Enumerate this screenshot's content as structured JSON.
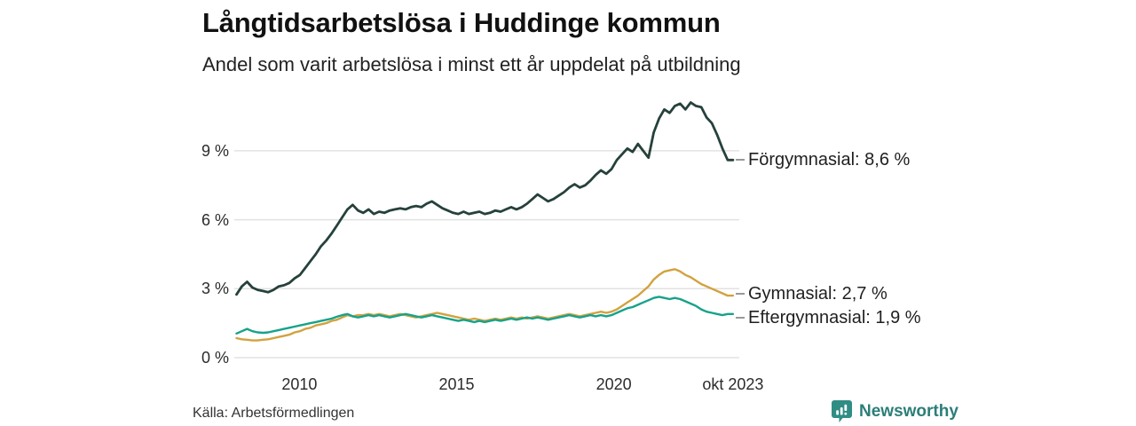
{
  "header": {
    "title": "Långtidsarbetslösa i Huddinge kommun",
    "subtitle": "Andel som varit arbetslösa i minst ett år uppdelat på utbildning"
  },
  "footer": {
    "source": "Källa: Arbetsförmedlingen",
    "brand": "Newsworthy"
  },
  "colors": {
    "grid": "#e2e2e2",
    "connector": "#999999",
    "brand_teal": "#2c7e78",
    "text_dark": "#111111"
  },
  "chart_data": {
    "type": "line",
    "title": "Långtidsarbetslösa i Huddinge kommun",
    "subtitle": "Andel som varit arbetslösa i minst ett år uppdelat på utbildning",
    "grid": "horizontal",
    "legend_position": "labels-at-line-end-right",
    "xlim": [
      2008,
      2023.79
    ],
    "ylim": [
      0,
      11.5
    ],
    "x_ticks": [
      {
        "label": "2010",
        "t": 2010
      },
      {
        "label": "2015",
        "t": 2015
      },
      {
        "label": "2020",
        "t": 2020
      },
      {
        "label": "okt 2023",
        "t": 2023.79
      }
    ],
    "y_ticks": [
      {
        "label": "0 %",
        "v": 0
      },
      {
        "label": "3 %",
        "v": 3
      },
      {
        "label": "6 %",
        "v": 6
      },
      {
        "label": "9 %",
        "v": 9
      }
    ],
    "series": [
      {
        "name": "Förgymnasial",
        "end_label": "Förgymnasial: 8,6 %",
        "last_value": 8.6,
        "color": "#26413c",
        "values": [
          2.75,
          3.1,
          3.3,
          3.05,
          2.95,
          2.9,
          2.85,
          2.95,
          3.1,
          3.15,
          3.25,
          3.45,
          3.6,
          3.9,
          4.2,
          4.5,
          4.85,
          5.1,
          5.4,
          5.75,
          6.1,
          6.45,
          6.65,
          6.4,
          6.3,
          6.45,
          6.25,
          6.35,
          6.3,
          6.4,
          6.45,
          6.5,
          6.45,
          6.55,
          6.6,
          6.55,
          6.7,
          6.8,
          6.65,
          6.5,
          6.4,
          6.3,
          6.25,
          6.35,
          6.25,
          6.3,
          6.35,
          6.25,
          6.3,
          6.4,
          6.35,
          6.45,
          6.55,
          6.45,
          6.55,
          6.7,
          6.9,
          7.1,
          6.95,
          6.8,
          6.9,
          7.05,
          7.2,
          7.4,
          7.55,
          7.4,
          7.5,
          7.7,
          7.95,
          8.15,
          8.0,
          8.2,
          8.6,
          8.85,
          9.1,
          8.95,
          9.3,
          9.0,
          8.7,
          9.8,
          10.4,
          10.8,
          10.65,
          10.95,
          11.05,
          10.8,
          11.1,
          10.95,
          10.9,
          10.45,
          10.2,
          9.7,
          9.1,
          8.6,
          8.6
        ]
      },
      {
        "name": "Gymnasial",
        "end_label": "Gymnasial: 2,7 %",
        "last_value": 2.7,
        "color": "#d2a23f",
        "values": [
          0.85,
          0.8,
          0.78,
          0.75,
          0.75,
          0.78,
          0.8,
          0.85,
          0.9,
          0.95,
          1.0,
          1.1,
          1.15,
          1.25,
          1.3,
          1.4,
          1.45,
          1.5,
          1.6,
          1.65,
          1.75,
          1.85,
          1.8,
          1.85,
          1.85,
          1.9,
          1.85,
          1.9,
          1.85,
          1.8,
          1.85,
          1.9,
          1.85,
          1.8,
          1.75,
          1.8,
          1.85,
          1.9,
          1.95,
          1.9,
          1.85,
          1.8,
          1.75,
          1.7,
          1.65,
          1.7,
          1.65,
          1.6,
          1.65,
          1.7,
          1.65,
          1.7,
          1.75,
          1.7,
          1.75,
          1.7,
          1.75,
          1.8,
          1.75,
          1.7,
          1.75,
          1.8,
          1.85,
          1.9,
          1.85,
          1.8,
          1.85,
          1.9,
          1.95,
          2.0,
          1.95,
          2.0,
          2.1,
          2.25,
          2.4,
          2.55,
          2.7,
          2.9,
          3.1,
          3.4,
          3.6,
          3.75,
          3.8,
          3.85,
          3.75,
          3.6,
          3.5,
          3.35,
          3.2,
          3.1,
          3.0,
          2.9,
          2.8,
          2.7,
          2.7
        ]
      },
      {
        "name": "Eftergymnasial",
        "end_label": "Eftergymnasial: 1,9 %",
        "last_value": 1.9,
        "color": "#17a28a",
        "values": [
          1.05,
          1.15,
          1.25,
          1.15,
          1.1,
          1.08,
          1.1,
          1.15,
          1.2,
          1.25,
          1.3,
          1.35,
          1.4,
          1.45,
          1.5,
          1.55,
          1.6,
          1.65,
          1.7,
          1.78,
          1.85,
          1.9,
          1.8,
          1.75,
          1.8,
          1.85,
          1.8,
          1.85,
          1.8,
          1.75,
          1.8,
          1.85,
          1.9,
          1.85,
          1.8,
          1.75,
          1.8,
          1.85,
          1.8,
          1.75,
          1.7,
          1.65,
          1.6,
          1.65,
          1.6,
          1.55,
          1.6,
          1.55,
          1.6,
          1.65,
          1.6,
          1.65,
          1.7,
          1.65,
          1.7,
          1.75,
          1.7,
          1.75,
          1.7,
          1.65,
          1.7,
          1.75,
          1.8,
          1.85,
          1.8,
          1.75,
          1.8,
          1.85,
          1.8,
          1.85,
          1.8,
          1.85,
          1.95,
          2.05,
          2.15,
          2.2,
          2.3,
          2.4,
          2.5,
          2.6,
          2.65,
          2.6,
          2.55,
          2.6,
          2.55,
          2.45,
          2.35,
          2.25,
          2.1,
          2.0,
          1.95,
          1.9,
          1.85,
          1.9,
          1.9
        ]
      }
    ]
  }
}
